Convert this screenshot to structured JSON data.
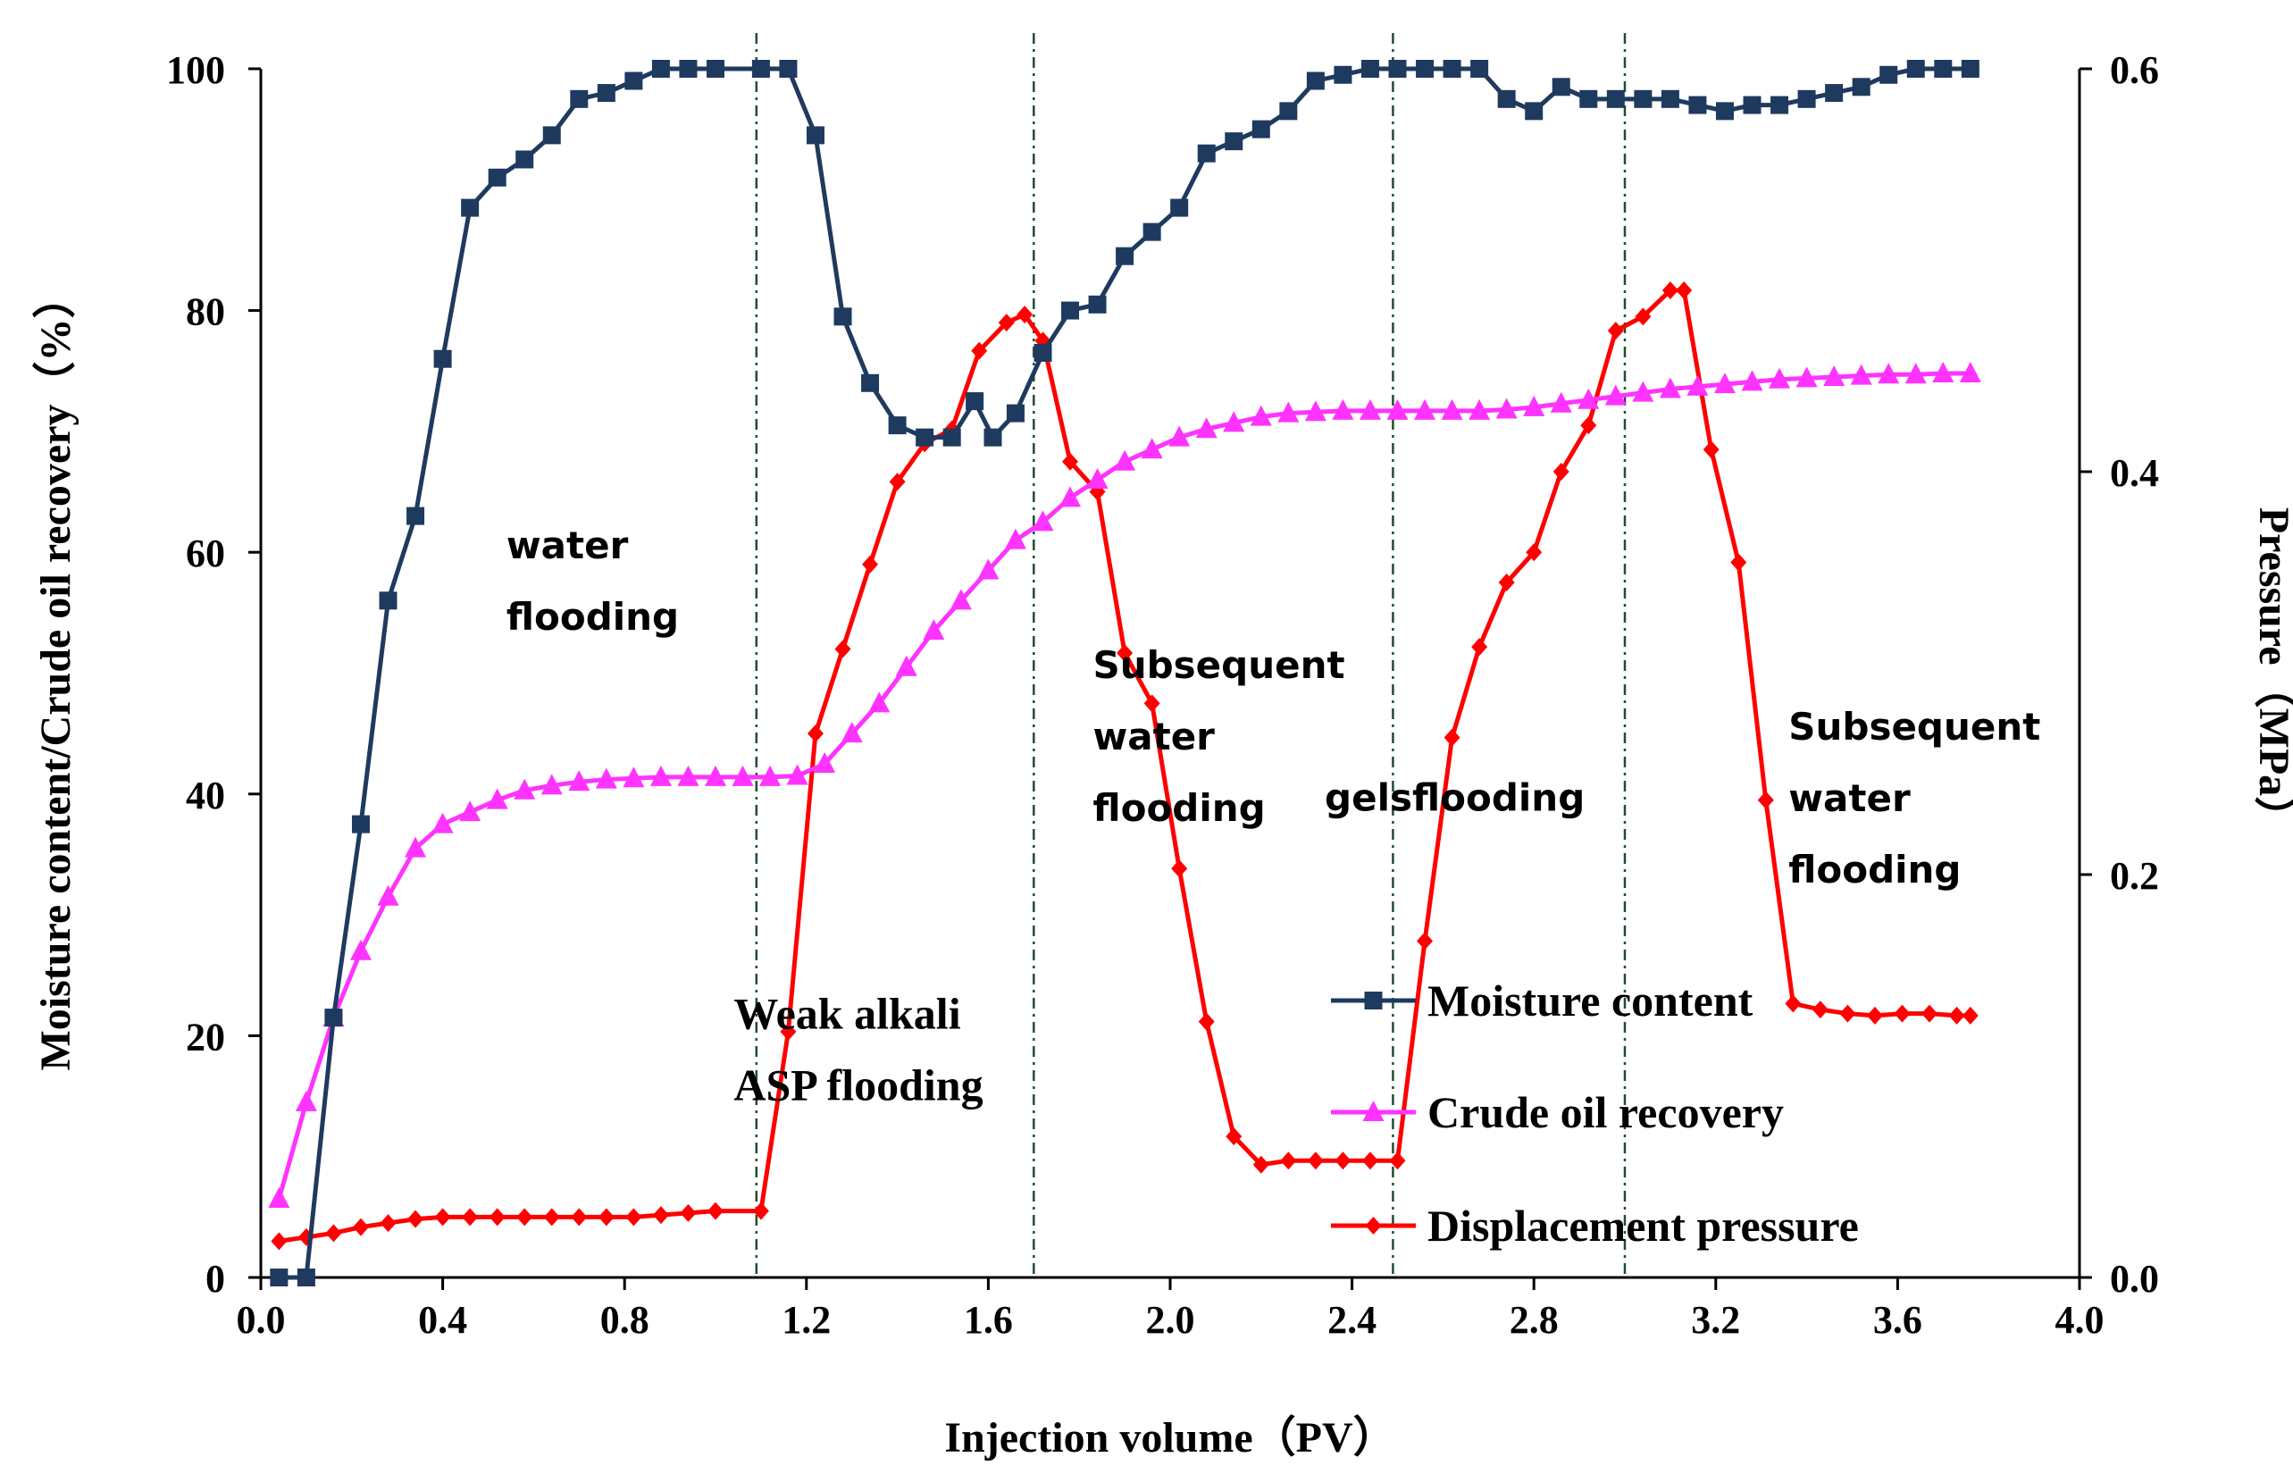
{
  "chart_data": {
    "type": "line",
    "xlabel": "Injection volume（PV）",
    "ylabel": "Moisture content/Crude oil recovery（%）",
    "y2label": "Pressure（MPa）",
    "xlim": [
      0.0,
      4.0
    ],
    "ylim": [
      0,
      100
    ],
    "y2lim": [
      0.0,
      0.6
    ],
    "x_ticks": [
      "0.0",
      "0.4",
      "0.8",
      "1.2",
      "1.6",
      "2.0",
      "2.4",
      "2.8",
      "3.2",
      "3.6",
      "4.0"
    ],
    "y_ticks": [
      "0",
      "20",
      "40",
      "60",
      "80",
      "100"
    ],
    "y2_ticks": [
      "0.0",
      "0.2",
      "0.4",
      "0.6"
    ],
    "phase_dividers": [
      1.09,
      1.7,
      2.49,
      3.0
    ],
    "annotations": [
      {
        "lines": [
          "water",
          "flooding"
        ],
        "x": 0.54,
        "y": 59.5,
        "font": "sans"
      },
      {
        "lines": [
          "Weak alkali",
          "ASP flooding"
        ],
        "x": 1.04,
        "y": 20.6,
        "font": "serif"
      },
      {
        "lines": [
          "Subsequent",
          "water",
          "flooding"
        ],
        "x": 1.83,
        "y": 49.6,
        "font": "sans"
      },
      {
        "lines": [
          "gelsflooding"
        ],
        "x": 2.34,
        "y": 38.6,
        "font": "sans"
      },
      {
        "lines": [
          "Subsequent",
          "water",
          "flooding"
        ],
        "x": 3.36,
        "y": 44.5,
        "font": "sans"
      }
    ],
    "legend": {
      "position": "lower-right"
    },
    "series": [
      {
        "name": "Moisture content",
        "axis": "left",
        "color": "#1f3a5f",
        "marker": "square",
        "x": [
          0.04,
          0.1,
          0.16,
          0.22,
          0.28,
          0.34,
          0.4,
          0.46,
          0.52,
          0.58,
          0.64,
          0.7,
          0.76,
          0.82,
          0.88,
          0.94,
          1.0,
          1.1,
          1.16,
          1.22,
          1.28,
          1.34,
          1.4,
          1.46,
          1.52,
          1.57,
          1.61,
          1.66,
          1.72,
          1.78,
          1.84,
          1.9,
          1.96,
          2.02,
          2.08,
          2.14,
          2.2,
          2.26,
          2.32,
          2.38,
          2.44,
          2.5,
          2.56,
          2.62,
          2.68,
          2.74,
          2.8,
          2.86,
          2.92,
          2.98,
          3.04,
          3.1,
          3.16,
          3.22,
          3.28,
          3.34,
          3.4,
          3.46,
          3.52,
          3.58,
          3.64,
          3.7,
          3.76
        ],
        "y": [
          0,
          0,
          21.5,
          37.5,
          56,
          63,
          76,
          88.5,
          91,
          92.5,
          94.5,
          97.5,
          98,
          99,
          100,
          100,
          100,
          100,
          100,
          94.5,
          79.5,
          74,
          70.5,
          69.5,
          69.5,
          72.5,
          69.5,
          71.5,
          76.5,
          80,
          80.5,
          84.5,
          86.5,
          88.5,
          93,
          94,
          95,
          96.5,
          99,
          99.5,
          100,
          100,
          100,
          100,
          100,
          97.5,
          96.5,
          98.5,
          97.5,
          97.5,
          97.5,
          97.5,
          97,
          96.5,
          97,
          97,
          97.5,
          98,
          98.5,
          99.5,
          100,
          100,
          100
        ]
      },
      {
        "name": "Crude oil recovery",
        "axis": "left",
        "color": "#ff33ff",
        "marker": "triangle",
        "x": [
          0.04,
          0.1,
          0.16,
          0.22,
          0.28,
          0.34,
          0.4,
          0.46,
          0.52,
          0.58,
          0.64,
          0.7,
          0.76,
          0.82,
          0.88,
          0.94,
          1.0,
          1.06,
          1.12,
          1.18,
          1.24,
          1.3,
          1.36,
          1.42,
          1.48,
          1.54,
          1.6,
          1.66,
          1.72,
          1.78,
          1.84,
          1.9,
          1.96,
          2.02,
          2.08,
          2.14,
          2.2,
          2.26,
          2.32,
          2.38,
          2.44,
          2.5,
          2.56,
          2.62,
          2.68,
          2.74,
          2.8,
          2.86,
          2.92,
          2.98,
          3.04,
          3.1,
          3.16,
          3.22,
          3.28,
          3.34,
          3.4,
          3.46,
          3.52,
          3.58,
          3.64,
          3.7,
          3.76
        ],
        "y": [
          6.5,
          14.5,
          21.5,
          27,
          31.5,
          35.5,
          37.5,
          38.5,
          39.5,
          40.3,
          40.7,
          41,
          41.2,
          41.3,
          41.4,
          41.4,
          41.4,
          41.4,
          41.4,
          41.5,
          42.5,
          45,
          47.5,
          50.5,
          53.5,
          56,
          58.5,
          61,
          62.5,
          64.5,
          66,
          67.5,
          68.5,
          69.5,
          70.2,
          70.7,
          71.2,
          71.5,
          71.6,
          71.7,
          71.7,
          71.7,
          71.7,
          71.7,
          71.7,
          71.8,
          72,
          72.3,
          72.6,
          72.9,
          73.2,
          73.5,
          73.7,
          73.9,
          74.1,
          74.3,
          74.4,
          74.5,
          74.6,
          74.7,
          74.7,
          74.8,
          74.8
        ]
      },
      {
        "name": "Displacement pressure",
        "axis": "right",
        "color": "#ff0000",
        "marker": "diamond",
        "x": [
          0.04,
          0.1,
          0.16,
          0.22,
          0.28,
          0.34,
          0.4,
          0.46,
          0.52,
          0.58,
          0.64,
          0.7,
          0.76,
          0.82,
          0.88,
          0.94,
          1.0,
          1.1,
          1.16,
          1.22,
          1.28,
          1.34,
          1.4,
          1.46,
          1.52,
          1.58,
          1.64,
          1.68,
          1.72,
          1.78,
          1.84,
          1.9,
          1.96,
          2.02,
          2.08,
          2.14,
          2.2,
          2.26,
          2.32,
          2.38,
          2.44,
          2.5,
          2.56,
          2.62,
          2.68,
          2.74,
          2.8,
          2.86,
          2.92,
          2.98,
          3.04,
          3.1,
          3.13,
          3.19,
          3.25,
          3.31,
          3.37,
          3.43,
          3.49,
          3.55,
          3.61,
          3.67,
          3.73,
          3.76
        ],
        "y": [
          0.018,
          0.02,
          0.022,
          0.025,
          0.027,
          0.029,
          0.03,
          0.03,
          0.03,
          0.03,
          0.03,
          0.03,
          0.03,
          0.03,
          0.031,
          0.032,
          0.033,
          0.033,
          0.122,
          0.27,
          0.312,
          0.354,
          0.395,
          0.414,
          0.421,
          0.46,
          0.474,
          0.478,
          0.465,
          0.405,
          0.39,
          0.31,
          0.285,
          0.203,
          0.127,
          0.07,
          0.056,
          0.058,
          0.058,
          0.058,
          0.058,
          0.058,
          0.167,
          0.268,
          0.313,
          0.345,
          0.36,
          0.4,
          0.423,
          0.47,
          0.477,
          0.49,
          0.49,
          0.411,
          0.355,
          0.237,
          0.136,
          0.133,
          0.131,
          0.13,
          0.131,
          0.131,
          0.13,
          0.13
        ]
      }
    ]
  }
}
